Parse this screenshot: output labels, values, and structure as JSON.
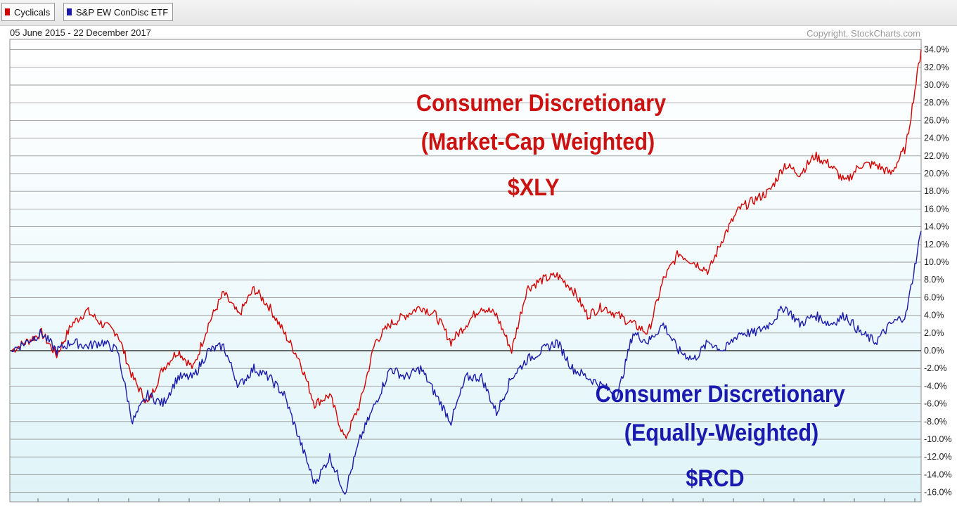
{
  "legend": {
    "items": [
      {
        "label": "Cyclicals",
        "color": "#d40000"
      },
      {
        "label": "S&P EW ConDisc ETF",
        "color": "#1a1aaa"
      }
    ]
  },
  "header": {
    "date_range": "05 June 2015 - 22 December 2017",
    "copyright": "Copyright, StockCharts.com"
  },
  "annotations": {
    "xly": {
      "line1": "Consumer Discretionary",
      "line2": "(Market-Cap Weighted)",
      "line3": "$XLY",
      "color": "#cc1111"
    },
    "rcd": {
      "line1": "Consumer Discretionary",
      "line2": "(Equally-Weighted)",
      "line3": "$RCD",
      "color": "#1a1ab0"
    }
  },
  "chart_data": {
    "type": "line",
    "y_axis": {
      "unit": "%",
      "ylim": [
        -17,
        35
      ],
      "ticks": [
        34,
        32,
        30,
        28,
        26,
        24,
        22,
        20,
        18,
        16,
        14,
        12,
        10,
        8,
        6,
        4,
        2,
        0,
        -2,
        -4,
        -6,
        -8,
        -10,
        -12,
        -14,
        -16
      ],
      "tick_labels": [
        "34.0%",
        "32.0%",
        "30.0%",
        "28.0%",
        "26.0%",
        "24.0%",
        "22.0%",
        "20.0%",
        "18.0%",
        "16.0%",
        "14.0%",
        "12.0%",
        "10.0%",
        "8.0%",
        "6.0%",
        "4.0%",
        "2.0%",
        "0.0%",
        "-2.0%",
        "-4.0%",
        "-6.0%",
        "-8.0%",
        "-10.0%",
        "-12.0%",
        "-14.0%",
        "-16.0%"
      ],
      "position": "right"
    },
    "x": {
      "start": "2015-06-05",
      "end": "2017-12-22",
      "points": 61
    },
    "grid": true,
    "series": [
      {
        "name": "Cyclicals",
        "color": "#d40000",
        "values": [
          0,
          1,
          2,
          -0.5,
          3,
          4.5,
          3,
          2,
          -3,
          -6,
          -2,
          0,
          -2,
          3,
          6.5,
          4,
          7,
          5,
          2,
          -1,
          -6,
          -5,
          -10,
          -6,
          1,
          3,
          4,
          5,
          4,
          1,
          3,
          5,
          4,
          0,
          7,
          8,
          8.5,
          7,
          4,
          5,
          4,
          3,
          2,
          8,
          11,
          10,
          9,
          13,
          16,
          17,
          18,
          21,
          20,
          22,
          21,
          19,
          21,
          21,
          20,
          23,
          34
        ]
      },
      {
        "name": "S&P EW ConDisc ETF",
        "color": "#1a1aaa",
        "values": [
          0,
          1,
          2,
          0,
          1,
          0.5,
          1,
          0,
          -8,
          -5,
          -6,
          -3,
          -3,
          0,
          0.5,
          -4,
          -2,
          -3,
          -5,
          -10,
          -15,
          -12,
          -16,
          -10,
          -6,
          -2,
          -3,
          -2,
          -5,
          -8,
          -3,
          -3,
          -7,
          -3,
          -1,
          0,
          1,
          -2,
          -3,
          -4,
          -5,
          2,
          1,
          3,
          0,
          -1,
          1,
          0,
          2,
          2,
          3,
          5,
          3,
          4,
          3,
          4,
          2,
          1,
          3,
          4,
          13.5
        ]
      }
    ]
  }
}
